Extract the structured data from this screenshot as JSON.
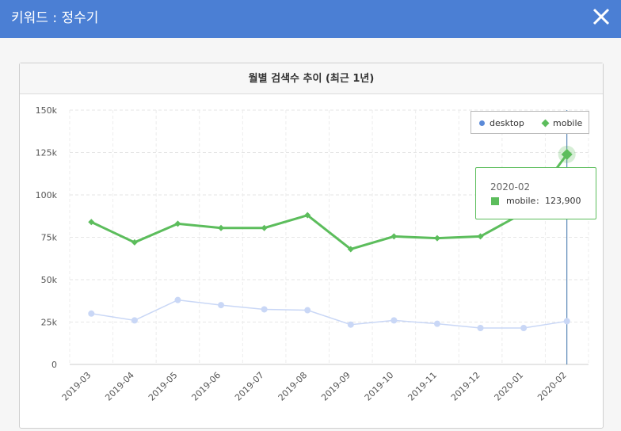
{
  "titlebar": {
    "title": "키워드 : 정수기"
  },
  "card": {
    "title": "월별 검색수 추이 (최근 1년)"
  },
  "legend": {
    "desktop": {
      "label": "desktop",
      "color": "#5b8ad8"
    },
    "mobile": {
      "label": "mobile",
      "color": "#5cbd5c"
    }
  },
  "tooltip": {
    "date": "2020-02",
    "series": "mobile",
    "separator": ":",
    "value": "123,900"
  },
  "chart_data": {
    "type": "line",
    "categories": [
      "2019-03",
      "2019-04",
      "2019-05",
      "2019-06",
      "2019-07",
      "2019-08",
      "2019-09",
      "2019-10",
      "2019-11",
      "2019-12",
      "2020-01",
      "2020-02"
    ],
    "series": [
      {
        "name": "desktop",
        "values": [
          30000,
          26000,
          38000,
          35000,
          32500,
          32000,
          23500,
          26000,
          24000,
          21500,
          21500,
          25500
        ],
        "color": "#c9d7f6"
      },
      {
        "name": "mobile",
        "values": [
          84000,
          72000,
          83000,
          80500,
          80500,
          88000,
          68000,
          75500,
          74500,
          75500,
          89500,
          123900
        ],
        "color": "#5cbd5c"
      }
    ],
    "yticks": [
      "0",
      "25k",
      "50k",
      "75k",
      "100k",
      "125k",
      "150k"
    ],
    "ylim": [
      0,
      150000
    ],
    "highlight_index": 11
  }
}
